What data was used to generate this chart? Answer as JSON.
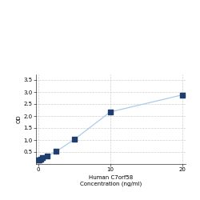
{
  "x": [
    0.0,
    0.156,
    0.312,
    0.625,
    1.25,
    2.5,
    5.0,
    10.0,
    20.0
  ],
  "y": [
    0.152,
    0.182,
    0.21,
    0.26,
    0.33,
    0.52,
    1.02,
    2.17,
    2.88
  ],
  "line_color": "#aacce8",
  "marker_color": "#1f3e6e",
  "marker_size": 4,
  "xlabel": "Human C7orf58\nConcentration (ng/ml)",
  "ylabel": "OD",
  "xlim": [
    -0.3,
    20.5
  ],
  "ylim": [
    0,
    3.75
  ],
  "yticks": [
    0.5,
    1.0,
    1.5,
    2.0,
    2.5,
    3.0,
    3.5
  ],
  "xticks": [
    0,
    10,
    20
  ],
  "grid_color": "#d0d0d0",
  "background_color": "#ffffff",
  "xlabel_fontsize": 5,
  "ylabel_fontsize": 5,
  "tick_fontsize": 5
}
